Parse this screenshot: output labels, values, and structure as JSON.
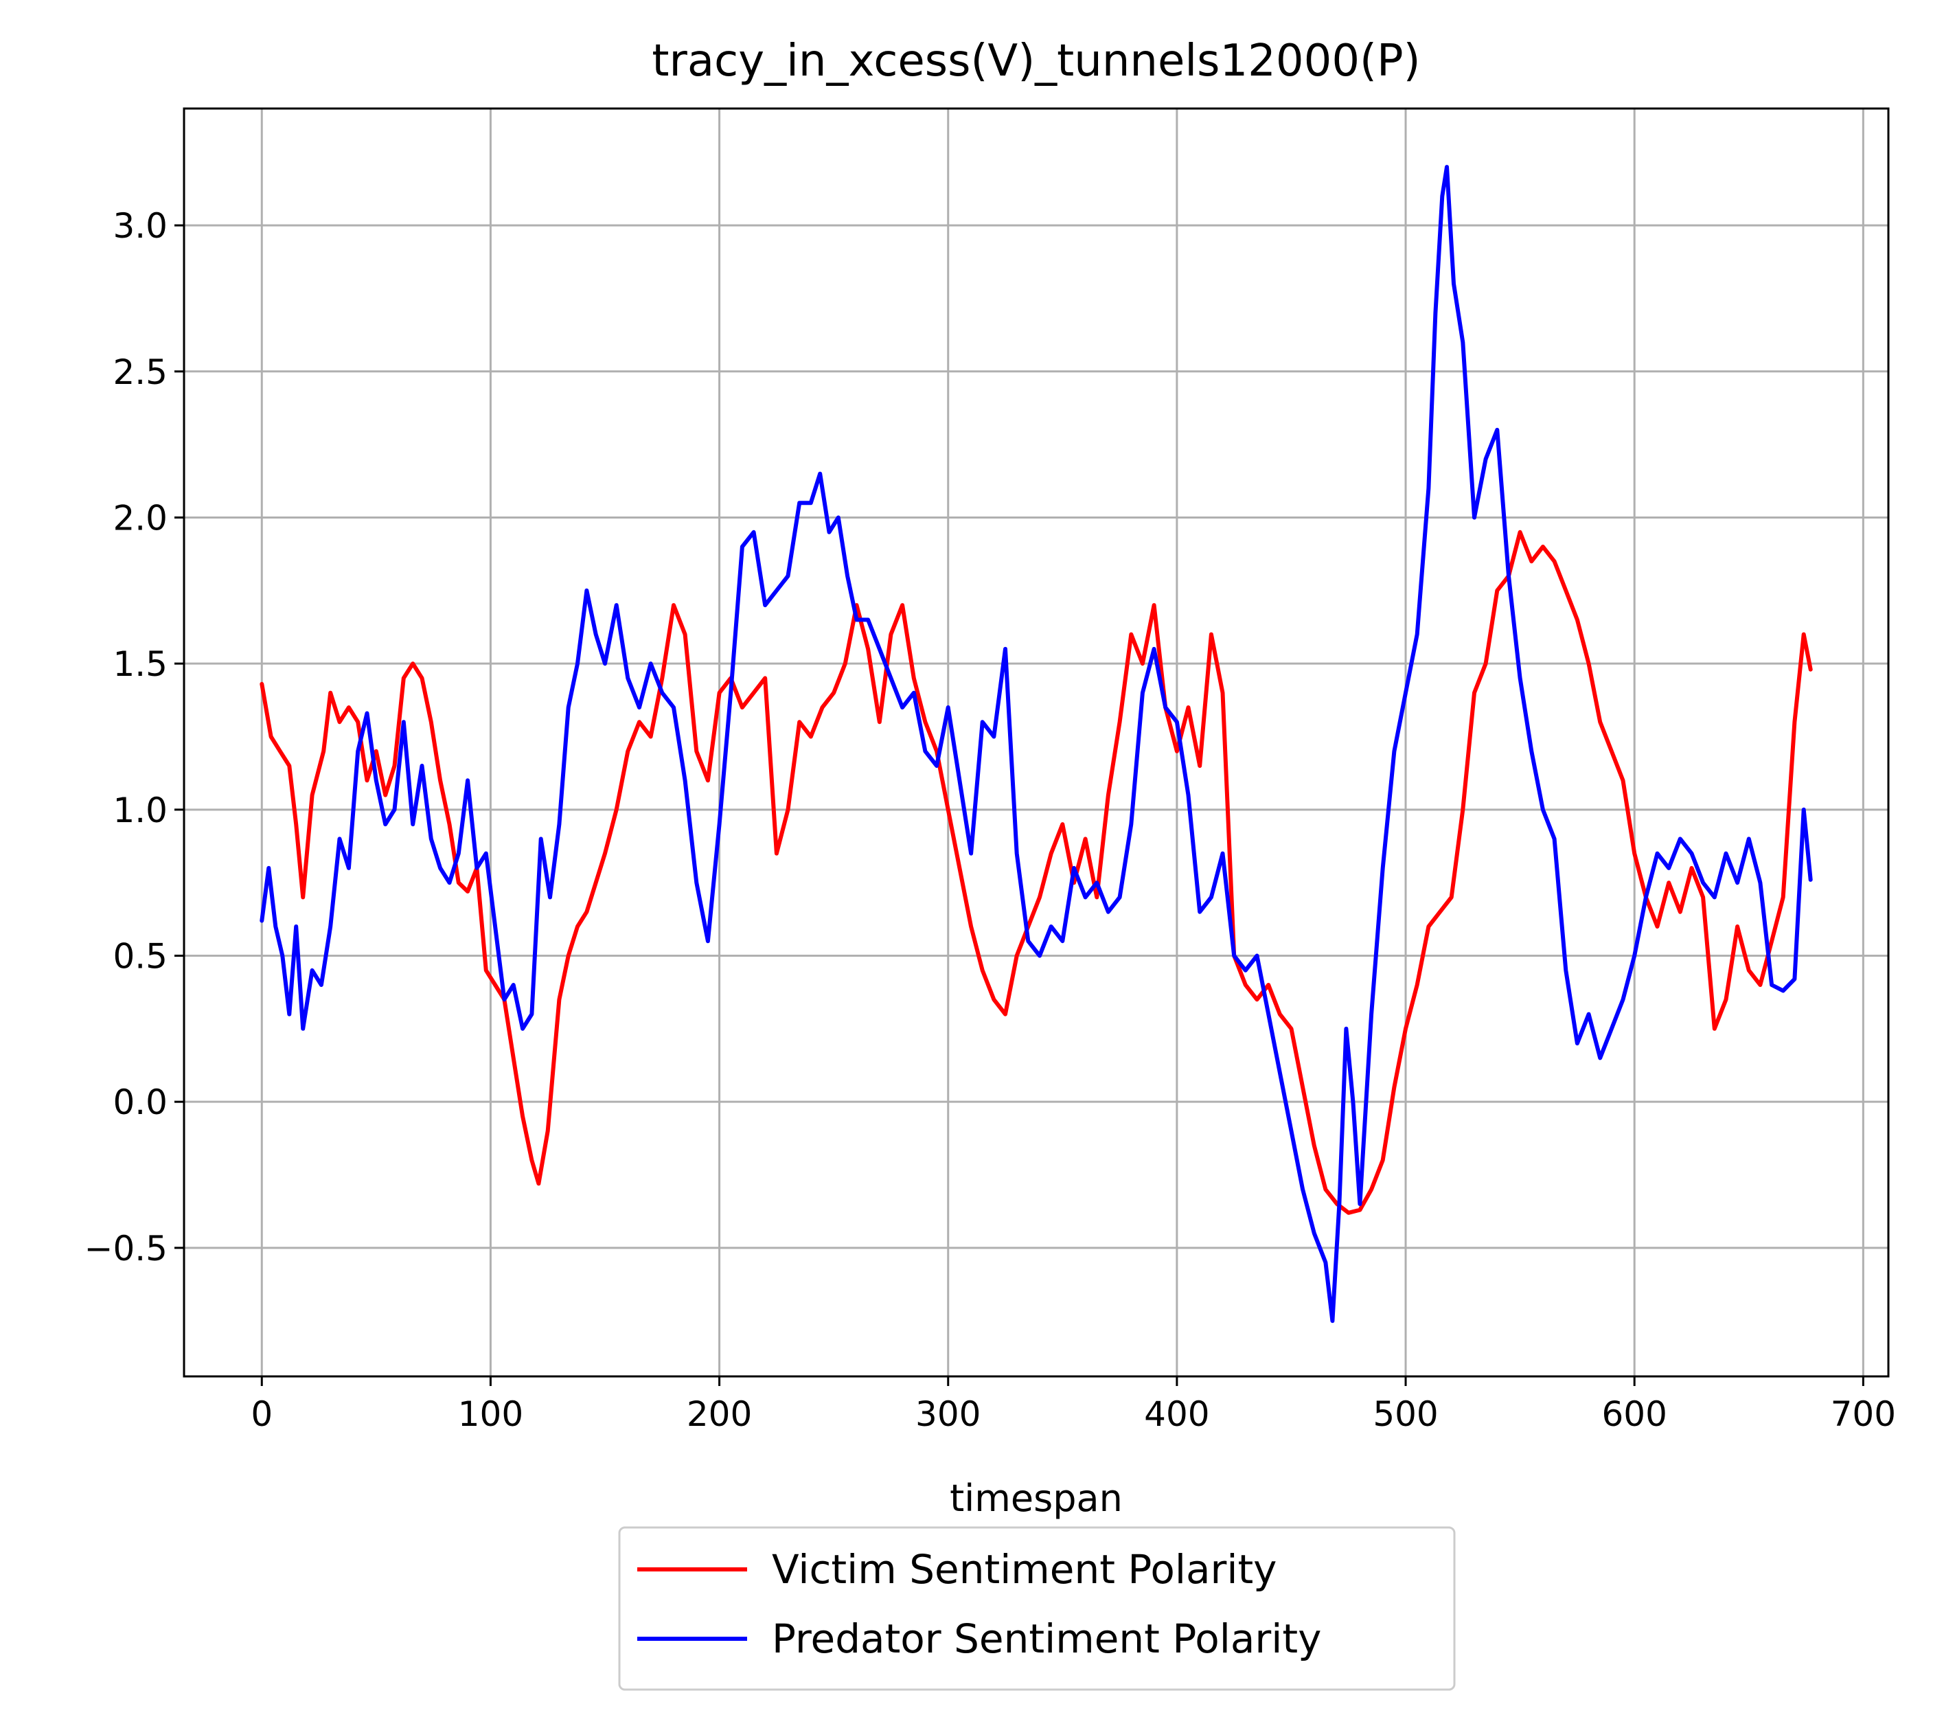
{
  "chart_data": {
    "type": "line",
    "title": "tracy_in_xcess(V)_tunnels12000(P)",
    "xlabel": "timespan",
    "ylabel": "",
    "xlim": [
      -34,
      711
    ],
    "ylim": [
      -0.94,
      3.4
    ],
    "xticks": [
      0,
      100,
      200,
      300,
      400,
      500,
      600,
      700
    ],
    "yticks": [
      -0.5,
      0.0,
      0.5,
      1.0,
      1.5,
      2.0,
      2.5,
      3.0
    ],
    "xtick_labels": [
      "0",
      "100",
      "200",
      "300",
      "400",
      "500",
      "600",
      "700"
    ],
    "ytick_labels": [
      "−0.5",
      "0.0",
      "0.5",
      "1.0",
      "1.5",
      "2.0",
      "2.5",
      "3.0"
    ],
    "grid": true,
    "legend_position": "below",
    "series": [
      {
        "name": "Victim Sentiment Polarity",
        "color": "#ff0000",
        "x": [
          0,
          4,
          8,
          12,
          15,
          18,
          22,
          27,
          30,
          34,
          38,
          42,
          46,
          50,
          54,
          58,
          62,
          66,
          70,
          74,
          78,
          82,
          86,
          90,
          94,
          98,
          102,
          106,
          110,
          114,
          118,
          121,
          125,
          130,
          134,
          138,
          142,
          146,
          150,
          155,
          160,
          165,
          170,
          175,
          180,
          185,
          190,
          195,
          200,
          205,
          210,
          215,
          220,
          225,
          230,
          235,
          240,
          245,
          250,
          255,
          260,
          265,
          270,
          275,
          280,
          285,
          290,
          295,
          300,
          305,
          310,
          315,
          320,
          325,
          330,
          335,
          340,
          345,
          350,
          355,
          360,
          365,
          370,
          375,
          380,
          385,
          390,
          395,
          400,
          405,
          410,
          415,
          420,
          425,
          430,
          435,
          440,
          445,
          450,
          455,
          460,
          465,
          470,
          475,
          480,
          485,
          490,
          495,
          500,
          505,
          510,
          515,
          520,
          525,
          530,
          535,
          540,
          545,
          550,
          555,
          560,
          565,
          570,
          575,
          580,
          585,
          590,
          595,
          600,
          605,
          610,
          615,
          620,
          625,
          630,
          635,
          640,
          645,
          650,
          655,
          660,
          665,
          670,
          674,
          677
        ],
        "y": [
          1.43,
          1.25,
          1.2,
          1.15,
          0.95,
          0.7,
          1.05,
          1.2,
          1.4,
          1.3,
          1.35,
          1.3,
          1.1,
          1.2,
          1.05,
          1.15,
          1.45,
          1.5,
          1.45,
          1.3,
          1.1,
          0.95,
          0.75,
          0.72,
          0.8,
          0.45,
          0.4,
          0.35,
          0.15,
          -0.05,
          -0.2,
          -0.28,
          -0.1,
          0.35,
          0.5,
          0.6,
          0.65,
          0.75,
          0.85,
          1.0,
          1.2,
          1.3,
          1.25,
          1.45,
          1.7,
          1.6,
          1.2,
          1.1,
          1.4,
          1.45,
          1.35,
          1.4,
          1.45,
          0.85,
          1.0,
          1.3,
          1.25,
          1.35,
          1.4,
          1.5,
          1.7,
          1.55,
          1.3,
          1.6,
          1.7,
          1.45,
          1.3,
          1.2,
          1.0,
          0.8,
          0.6,
          0.45,
          0.35,
          0.3,
          0.5,
          0.6,
          0.7,
          0.85,
          0.95,
          0.75,
          0.9,
          0.7,
          1.05,
          1.3,
          1.6,
          1.5,
          1.7,
          1.35,
          1.2,
          1.35,
          1.15,
          1.6,
          1.4,
          0.5,
          0.4,
          0.35,
          0.4,
          0.3,
          0.25,
          0.05,
          -0.15,
          -0.3,
          -0.35,
          -0.38,
          -0.37,
          -0.3,
          -0.2,
          0.05,
          0.25,
          0.4,
          0.6,
          0.65,
          0.7,
          1.0,
          1.4,
          1.5,
          1.75,
          1.8,
          1.95,
          1.85,
          1.9,
          1.85,
          1.75,
          1.65,
          1.5,
          1.3,
          1.2,
          1.1,
          0.85,
          0.7,
          0.6,
          0.75,
          0.65,
          0.8,
          0.7,
          0.25,
          0.35,
          0.6,
          0.45,
          0.4,
          0.55,
          0.7,
          1.3,
          1.6,
          1.48
        ]
      },
      {
        "name": "Predator Sentiment Polarity",
        "color": "#0000ff",
        "x": [
          0,
          3,
          6,
          9,
          12,
          15,
          18,
          22,
          26,
          30,
          34,
          38,
          42,
          46,
          50,
          54,
          58,
          62,
          66,
          70,
          74,
          78,
          82,
          86,
          90,
          94,
          98,
          102,
          106,
          110,
          114,
          118,
          122,
          126,
          130,
          134,
          138,
          142,
          146,
          150,
          155,
          160,
          165,
          170,
          175,
          180,
          185,
          190,
          195,
          200,
          205,
          210,
          215,
          220,
          225,
          230,
          235,
          240,
          244,
          248,
          252,
          256,
          260,
          265,
          270,
          275,
          280,
          285,
          290,
          295,
          300,
          305,
          310,
          315,
          320,
          325,
          330,
          335,
          340,
          345,
          350,
          355,
          360,
          365,
          370,
          375,
          380,
          385,
          390,
          395,
          400,
          405,
          410,
          415,
          420,
          425,
          430,
          435,
          440,
          445,
          450,
          455,
          460,
          465,
          468,
          471,
          474,
          477,
          480,
          485,
          490,
          495,
          500,
          505,
          510,
          513,
          516,
          518,
          521,
          525,
          530,
          535,
          540,
          545,
          550,
          555,
          560,
          565,
          570,
          575,
          580,
          585,
          590,
          595,
          600,
          605,
          610,
          615,
          620,
          625,
          630,
          635,
          640,
          645,
          650,
          655,
          660,
          665,
          670,
          674,
          677
        ],
        "y": [
          0.62,
          0.8,
          0.6,
          0.5,
          0.3,
          0.6,
          0.25,
          0.45,
          0.4,
          0.6,
          0.9,
          0.8,
          1.2,
          1.33,
          1.1,
          0.95,
          1.0,
          1.3,
          0.95,
          1.15,
          0.9,
          0.8,
          0.75,
          0.85,
          1.1,
          0.8,
          0.85,
          0.6,
          0.35,
          0.4,
          0.25,
          0.3,
          0.9,
          0.7,
          0.95,
          1.35,
          1.5,
          1.75,
          1.6,
          1.5,
          1.7,
          1.45,
          1.35,
          1.5,
          1.4,
          1.35,
          1.1,
          0.75,
          0.55,
          0.95,
          1.4,
          1.9,
          1.95,
          1.7,
          1.75,
          1.8,
          2.05,
          2.05,
          2.15,
          1.95,
          2.0,
          1.8,
          1.65,
          1.65,
          1.55,
          1.45,
          1.35,
          1.4,
          1.2,
          1.15,
          1.35,
          1.1,
          0.85,
          1.3,
          1.25,
          1.55,
          0.85,
          0.55,
          0.5,
          0.6,
          0.55,
          0.8,
          0.7,
          0.75,
          0.65,
          0.7,
          0.95,
          1.4,
          1.55,
          1.35,
          1.3,
          1.05,
          0.65,
          0.7,
          0.85,
          0.5,
          0.45,
          0.5,
          0.3,
          0.1,
          -0.1,
          -0.3,
          -0.45,
          -0.55,
          -0.75,
          -0.35,
          0.25,
          0.0,
          -0.35,
          0.3,
          0.8,
          1.2,
          1.4,
          1.6,
          2.1,
          2.7,
          3.1,
          3.2,
          2.8,
          2.6,
          2.0,
          2.2,
          2.3,
          1.8,
          1.45,
          1.2,
          1.0,
          0.9,
          0.45,
          0.2,
          0.3,
          0.15,
          0.25,
          0.35,
          0.5,
          0.7,
          0.85,
          0.8,
          0.9,
          0.85,
          0.75,
          0.7,
          0.85,
          0.75,
          0.9,
          0.75,
          0.4,
          0.38,
          0.42,
          1.0,
          0.76
        ]
      }
    ]
  }
}
